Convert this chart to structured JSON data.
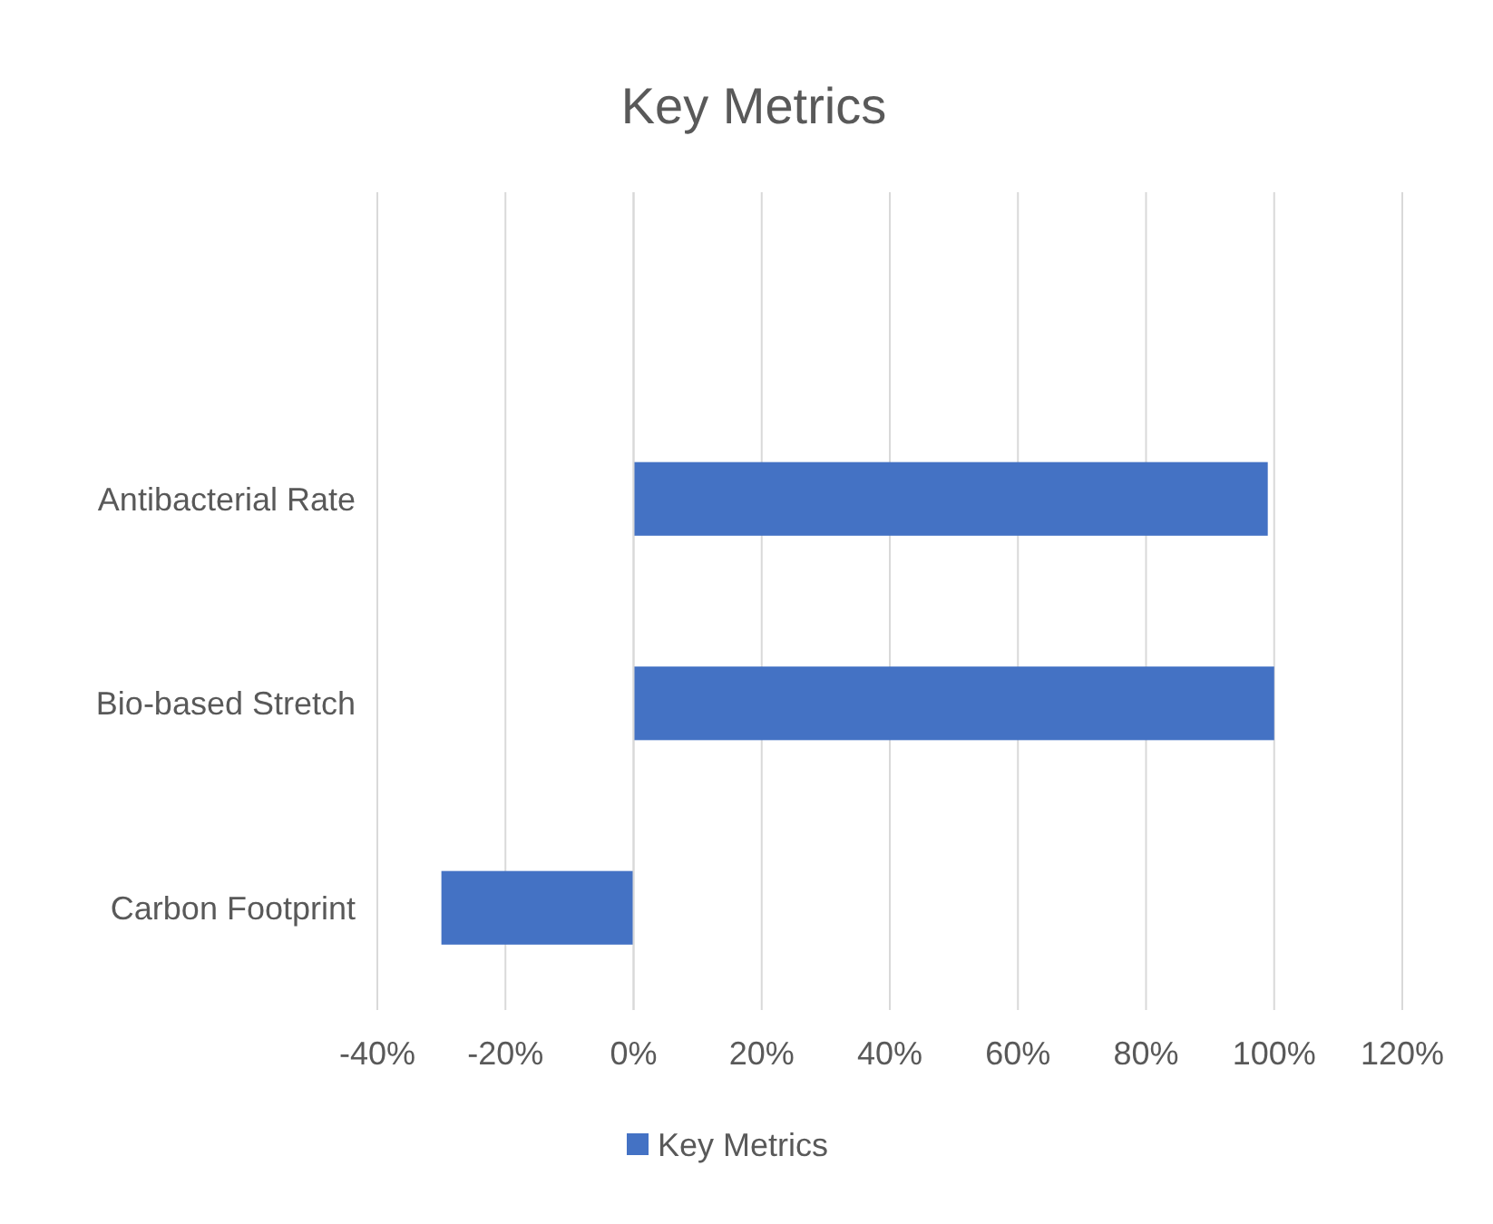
{
  "chart_data": {
    "type": "bar",
    "orientation": "horizontal",
    "title": "Key Metrics",
    "categories": [
      null,
      "Antibacterial Rate",
      "Bio-based Stretch",
      "Carbon Footprint"
    ],
    "series": [
      {
        "name": "Key Metrics",
        "color": "#4472c4",
        "values": [
          null,
          99,
          100,
          -30
        ]
      }
    ],
    "xlim": [
      -40,
      120
    ],
    "xticks": [
      {
        "value": -40,
        "label": "-40%"
      },
      {
        "value": -20,
        "label": "-20%"
      },
      {
        "value": 0,
        "label": "0%"
      },
      {
        "value": 20,
        "label": "20%"
      },
      {
        "value": 40,
        "label": "40%"
      },
      {
        "value": 60,
        "label": "60%"
      },
      {
        "value": 80,
        "label": "80%"
      },
      {
        "value": 100,
        "label": "100%"
      },
      {
        "value": 120,
        "label": "120%"
      }
    ],
    "grid": "x",
    "legend": "bottom"
  }
}
